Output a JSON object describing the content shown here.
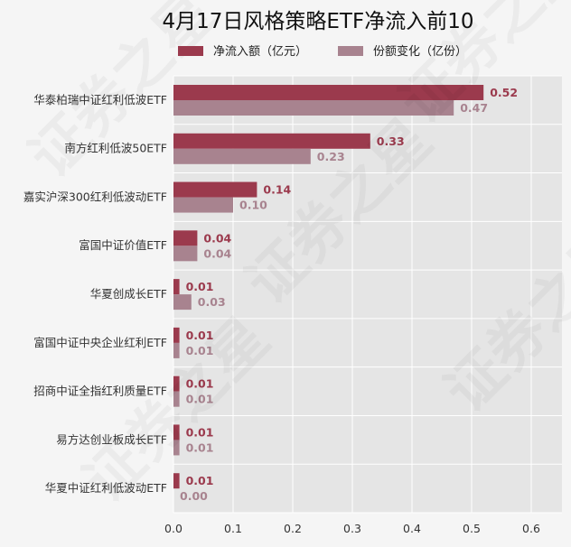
{
  "chart_data": {
    "type": "bar",
    "orientation": "horizontal",
    "title": "4月17日风格策略ETF净流入前10",
    "categories": [
      "华泰柏瑞中证红利低波ETF",
      "南方红利低波50ETF",
      "嘉实沪深300红利低波动ETF",
      "富国中证价值ETF",
      "华夏创成长ETF",
      "富国中证中央企业红利ETF",
      "招商中证全指红利质量ETF",
      "易方达创业板成长ETF",
      "华夏中证红利低波动ETF"
    ],
    "series": [
      {
        "name": "净流入额（亿元）",
        "color": "#9b3a4d",
        "values": [
          0.52,
          0.33,
          0.14,
          0.04,
          0.01,
          0.01,
          0.01,
          0.01,
          0.01
        ],
        "labels": [
          "0.52",
          "0.33",
          "0.14",
          "0.04",
          "0.01",
          "0.01",
          "0.01",
          "0.01",
          "0.01"
        ]
      },
      {
        "name": "份额变化（亿份）",
        "color": "#a8838f",
        "values": [
          0.47,
          0.23,
          0.1,
          0.04,
          0.03,
          0.01,
          0.01,
          0.01,
          0.0
        ],
        "labels": [
          "0.47",
          "0.23",
          "0.10",
          "0.04",
          "0.03",
          "0.01",
          "0.01",
          "0.01",
          "0.00"
        ]
      }
    ],
    "xlim": [
      0,
      0.65
    ],
    "xticks": [
      0.0,
      0.1,
      0.2,
      0.3,
      0.4,
      0.5,
      0.6
    ],
    "xtick_labels": [
      "0.0",
      "0.1",
      "0.2",
      "0.3",
      "0.4",
      "0.5",
      "0.6"
    ],
    "grid": true,
    "legend_position": "top",
    "plot_background": "#e5e5e5"
  },
  "watermark_text": "证券之星"
}
